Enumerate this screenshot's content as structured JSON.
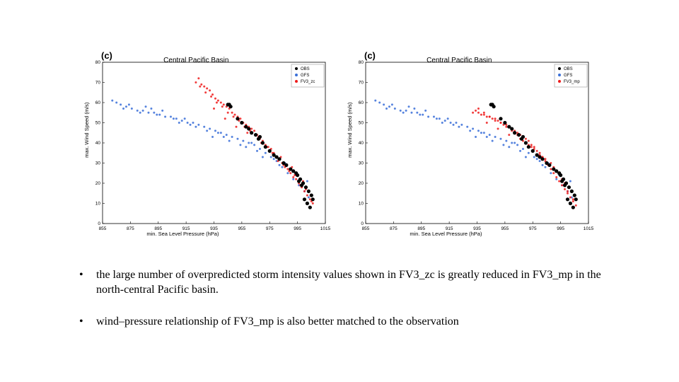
{
  "colors": {
    "obs": "#000000",
    "gfs": "#3a6fd8",
    "fv3": "#ee1c1c",
    "axis": "#000000"
  },
  "chart_data": [
    {
      "type": "scatter",
      "panel_label": "(c)",
      "title": "Central Pacific Basin",
      "xlabel": "min. Sea Level Pressure (hPa)",
      "ylabel": "max. Wind Speed (m/s)",
      "xlim": [
        855,
        1015
      ],
      "ylim": [
        0,
        80
      ],
      "xticks": [
        "855",
        "875",
        "895",
        "915",
        "935",
        "955",
        "975",
        "995",
        "1015"
      ],
      "yticks": [
        "0",
        "10",
        "20",
        "30",
        "40",
        "50",
        "60",
        "70",
        "80"
      ],
      "legend_position": "top-right",
      "series": [
        {
          "name": "OBS",
          "color_key": "obs",
          "marker_size": 2.6,
          "x": [
            945,
            946,
            947,
            952,
            955,
            958,
            960,
            962,
            965,
            967,
            968,
            970,
            972,
            975,
            978,
            980,
            982,
            985,
            987,
            990,
            992,
            995,
            997,
            999,
            1001,
            1003,
            1005,
            1000,
            1002,
            1004,
            998,
            996,
            994,
            1006
          ],
          "y": [
            59,
            59,
            58,
            52,
            50,
            48,
            47,
            45,
            44,
            42,
            43,
            40,
            38,
            36,
            34,
            33,
            32,
            30,
            29,
            27,
            26,
            24,
            22,
            20,
            18,
            16,
            14,
            12,
            10,
            8,
            19,
            21,
            25,
            12
          ]
        },
        {
          "name": "GFS",
          "color_key": "gfs",
          "marker_size": 1.5,
          "x": [
            862,
            865,
            868,
            872,
            876,
            880,
            884,
            888,
            892,
            896,
            900,
            904,
            908,
            912,
            916,
            920,
            924,
            928,
            932,
            936,
            940,
            944,
            948,
            952,
            956,
            960,
            964,
            968,
            972,
            976,
            980,
            984,
            988,
            992,
            996,
            1000,
            1003,
            870,
            882,
            894,
            906,
            918,
            930,
            942,
            954,
            966,
            978,
            990,
            1002,
            886,
            898,
            910,
            922,
            934,
            946,
            958,
            970,
            982,
            994,
            874,
            890,
            914,
            938,
            962,
            986
          ],
          "y": [
            61,
            60,
            59,
            58,
            57,
            56,
            56,
            55,
            55,
            54,
            53,
            53,
            52,
            51,
            50,
            50,
            49,
            48,
            47,
            46,
            45,
            44,
            43,
            42,
            41,
            40,
            39,
            37,
            35,
            33,
            31,
            28,
            25,
            22,
            19,
            16,
            13,
            57,
            55,
            54,
            52,
            49,
            46,
            43,
            39,
            36,
            32,
            27,
            21,
            58,
            56,
            50,
            48,
            43,
            41,
            38,
            33,
            29,
            24,
            59,
            57,
            52,
            45,
            40,
            30
          ]
        },
        {
          "name": "FV3_zc",
          "color_key": "fv3",
          "marker_size": 1.5,
          "x": [
            922,
            924,
            926,
            928,
            930,
            932,
            934,
            936,
            938,
            940,
            942,
            944,
            946,
            948,
            950,
            952,
            954,
            956,
            958,
            960,
            962,
            964,
            966,
            968,
            970,
            972,
            974,
            976,
            978,
            980,
            982,
            984,
            986,
            988,
            990,
            992,
            994,
            996,
            998,
            1000,
            1002,
            1004,
            1006,
            925,
            929,
            933,
            937,
            941,
            945,
            949,
            953,
            957,
            961,
            965,
            969,
            973,
            977,
            981,
            985,
            989,
            993,
            997,
            1001,
            1005,
            935,
            943,
            951,
            959,
            967,
            975,
            983,
            991,
            999
          ],
          "y": [
            70,
            72,
            69,
            68,
            67,
            66,
            64,
            62,
            61,
            60,
            59,
            58,
            57,
            55,
            54,
            53,
            52,
            50,
            49,
            48,
            47,
            46,
            44,
            42,
            41,
            39,
            38,
            37,
            35,
            33,
            32,
            30,
            28,
            27,
            25,
            23,
            22,
            20,
            18,
            16,
            14,
            12,
            10,
            68,
            65,
            63,
            60,
            58,
            55,
            53,
            51,
            48,
            46,
            44,
            40,
            38,
            35,
            31,
            29,
            26,
            24,
            19,
            17,
            11,
            57,
            52,
            48,
            45,
            43,
            36,
            33,
            28,
            21
          ]
        }
      ],
      "legend": [
        "OBS",
        "GFS",
        "FV3_zc"
      ]
    },
    {
      "type": "scatter",
      "panel_label": "(c)",
      "title": "Central Pacific Basin",
      "xlabel": "min. Sea Level Pressure (hPa)",
      "ylabel": "max. Wind Speed (m/s)",
      "xlim": [
        855,
        1015
      ],
      "ylim": [
        0,
        80
      ],
      "xticks": [
        "855",
        "875",
        "895",
        "915",
        "935",
        "955",
        "975",
        "995",
        "1015"
      ],
      "yticks": [
        "0",
        "10",
        "20",
        "30",
        "40",
        "50",
        "60",
        "70",
        "80"
      ],
      "legend_position": "top-right",
      "series": [
        {
          "name": "OBS",
          "color_key": "obs",
          "marker_size": 2.6,
          "x": [
            945,
            946,
            947,
            952,
            955,
            958,
            960,
            962,
            965,
            967,
            968,
            970,
            972,
            975,
            978,
            980,
            982,
            985,
            987,
            990,
            992,
            995,
            997,
            999,
            1001,
            1003,
            1005,
            1000,
            1002,
            1004,
            998,
            996,
            994,
            1006
          ],
          "y": [
            59,
            59,
            58,
            52,
            50,
            48,
            47,
            45,
            44,
            42,
            43,
            40,
            38,
            36,
            34,
            33,
            32,
            30,
            29,
            27,
            26,
            24,
            22,
            20,
            18,
            16,
            14,
            12,
            10,
            8,
            19,
            21,
            25,
            12
          ]
        },
        {
          "name": "GFS",
          "color_key": "gfs",
          "marker_size": 1.5,
          "x": [
            862,
            865,
            868,
            872,
            876,
            880,
            884,
            888,
            892,
            896,
            900,
            904,
            908,
            912,
            916,
            920,
            924,
            928,
            932,
            936,
            940,
            944,
            948,
            952,
            956,
            960,
            964,
            968,
            972,
            976,
            980,
            984,
            988,
            992,
            996,
            1000,
            1003,
            870,
            882,
            894,
            906,
            918,
            930,
            942,
            954,
            966,
            978,
            990,
            1002,
            886,
            898,
            910,
            922,
            934,
            946,
            958,
            970,
            982,
            994,
            874,
            890,
            914,
            938,
            962,
            986
          ],
          "y": [
            61,
            60,
            59,
            58,
            57,
            56,
            56,
            55,
            55,
            54,
            53,
            53,
            52,
            51,
            50,
            50,
            49,
            48,
            47,
            46,
            45,
            44,
            43,
            42,
            41,
            40,
            39,
            37,
            35,
            33,
            31,
            28,
            25,
            22,
            19,
            16,
            13,
            57,
            55,
            54,
            52,
            49,
            46,
            43,
            39,
            36,
            32,
            27,
            21,
            58,
            56,
            50,
            48,
            43,
            41,
            38,
            33,
            29,
            24,
            59,
            57,
            52,
            45,
            40,
            30
          ]
        },
        {
          "name": "FV3_mp",
          "color_key": "fv3",
          "marker_size": 1.5,
          "x": [
            932,
            934,
            936,
            938,
            940,
            942,
            944,
            946,
            948,
            950,
            952,
            954,
            956,
            958,
            960,
            962,
            964,
            966,
            968,
            970,
            972,
            974,
            976,
            978,
            980,
            982,
            984,
            986,
            988,
            990,
            992,
            994,
            996,
            998,
            1000,
            1002,
            1004,
            1006,
            936,
            940,
            944,
            948,
            952,
            956,
            960,
            964,
            968,
            972,
            976,
            980,
            984,
            988,
            992,
            996,
            1000,
            1004,
            942,
            950,
            958,
            966,
            974,
            982,
            990,
            998
          ],
          "y": [
            55,
            56,
            55,
            54,
            54,
            53,
            53,
            52,
            52,
            51,
            50,
            49,
            49,
            48,
            47,
            46,
            45,
            44,
            43,
            42,
            41,
            39,
            38,
            36,
            34,
            33,
            31,
            29,
            27,
            25,
            23,
            21,
            19,
            17,
            15,
            13,
            11,
            9,
            57,
            55,
            53,
            51,
            50,
            48,
            46,
            44,
            41,
            39,
            37,
            35,
            32,
            30,
            26,
            22,
            16,
            12,
            50,
            47,
            44,
            42,
            38,
            33,
            28,
            20
          ]
        }
      ],
      "legend": [
        "OBS",
        "GFS",
        "FV3_mp"
      ]
    }
  ],
  "bullets": [
    {
      "marker": "•",
      "text": "the large number of overpredicted storm intensity values shown in FV3_zc is greatly reduced in FV3_mp in the north-central Pacific basin."
    },
    {
      "marker": "•",
      "text": "wind–pressure relationship of FV3_mp is also better matched to the observation"
    }
  ]
}
